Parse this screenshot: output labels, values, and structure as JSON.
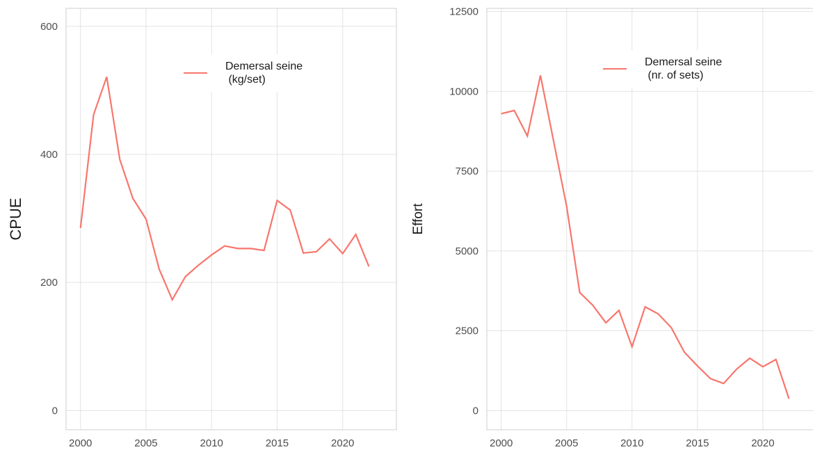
{
  "chart_data": [
    {
      "type": "line",
      "ylabel": "CPUE",
      "x": [
        2000,
        2001,
        2002,
        2003,
        2004,
        2005,
        2006,
        2007,
        2008,
        2009,
        2010,
        2011,
        2012,
        2013,
        2014,
        2015,
        2016,
        2017,
        2018,
        2019,
        2020,
        2021,
        2022
      ],
      "series": [
        {
          "name": "Demersal seine\n (kg/set)",
          "color": "#f8766d",
          "values": [
            285,
            462,
            521,
            392,
            331,
            299,
            221,
            173,
            209,
            227,
            243,
            257,
            253,
            253,
            250,
            328,
            313,
            246,
            248,
            268,
            245,
            275,
            225
          ]
        }
      ],
      "xlim": [
        1998.9,
        2024.1
      ],
      "xticks": [
        2000,
        2005,
        2010,
        2015,
        2020
      ],
      "ylim": [
        -30,
        628
      ],
      "yticks": [
        0,
        200,
        400,
        600
      ],
      "grid": true,
      "legend": "top"
    },
    {
      "type": "line",
      "ylabel": "Effort",
      "x": [
        2000,
        2001,
        2002,
        2003,
        2004,
        2005,
        2006,
        2007,
        2008,
        2009,
        2010,
        2011,
        2012,
        2013,
        2014,
        2015,
        2016,
        2017,
        2018,
        2019,
        2020,
        2021,
        2022
      ],
      "series": [
        {
          "name": "Demersal seine\n (nr. of sets)",
          "color": "#f8766d",
          "values": [
            9300,
            9400,
            8600,
            10500,
            8450,
            6400,
            3700,
            3300,
            2750,
            3140,
            2000,
            3250,
            3030,
            2600,
            1830,
            1400,
            1000,
            850,
            1300,
            1640,
            1375,
            1600,
            370
          ]
        }
      ],
      "xlim": [
        1998.9,
        2024.1
      ],
      "xticks": [
        2000,
        2005,
        2010,
        2015,
        2020
      ],
      "ylim": [
        -600,
        12600
      ],
      "yticks": [
        0,
        2500,
        5000,
        7500,
        10000,
        12500
      ],
      "grid": true,
      "legend": "top"
    }
  ]
}
